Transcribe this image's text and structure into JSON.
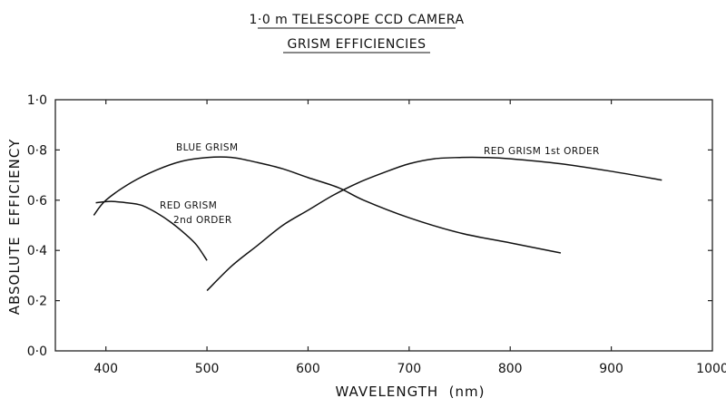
{
  "chart_data": {
    "type": "line",
    "title": [
      "1·0 m TELESCOPE CCD CAMERA",
      "GRISM EFFICIENCIES"
    ],
    "xlabel": "WAVELENGTH  (nm)",
    "ylabel": "ABSOLUTE  EFFICIENCY",
    "xlim": [
      350,
      1000
    ],
    "ylim": [
      0,
      1.0
    ],
    "xticks": [
      400,
      500,
      600,
      700,
      800,
      900,
      1000
    ],
    "xtick_labels": [
      "400",
      "500",
      "600",
      "700",
      "800",
      "900",
      "1000"
    ],
    "yticks": [
      0,
      0.2,
      0.4,
      0.6,
      0.8,
      1.0
    ],
    "ytick_labels": [
      "0·0",
      "0·2",
      "0·4",
      "0·6",
      "0·8",
      "1·0"
    ],
    "grid": false,
    "series": [
      {
        "name": "BLUE GRISM",
        "x": [
          388,
          400,
          425,
          450,
          475,
          500,
          525,
          550,
          575,
          600,
          630,
          655,
          700,
          750,
          800,
          850
        ],
        "y": [
          0.54,
          0.6,
          0.67,
          0.72,
          0.755,
          0.77,
          0.77,
          0.75,
          0.725,
          0.69,
          0.65,
          0.6,
          0.53,
          0.47,
          0.43,
          0.39
        ]
      },
      {
        "name": "RED GRISM 2nd ORDER",
        "label_lines": [
          "RED GRISM",
          "2nd ORDER"
        ],
        "x": [
          390,
          405,
          420,
          435,
          450,
          465,
          480,
          490,
          500
        ],
        "y": [
          0.59,
          0.595,
          0.59,
          0.58,
          0.55,
          0.51,
          0.46,
          0.42,
          0.36
        ]
      },
      {
        "name": "RED GRISM 1st ORDER",
        "x": [
          500,
          525,
          550,
          575,
          600,
          625,
          650,
          675,
          700,
          725,
          750,
          775,
          800,
          850,
          900,
          950
        ],
        "y": [
          0.24,
          0.34,
          0.42,
          0.5,
          0.56,
          0.62,
          0.67,
          0.71,
          0.745,
          0.765,
          0.77,
          0.77,
          0.765,
          0.745,
          0.715,
          0.68
        ]
      }
    ]
  }
}
